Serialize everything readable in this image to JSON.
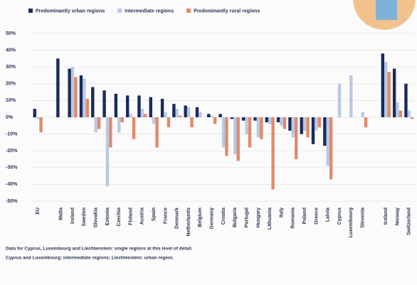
{
  "chart_data": {
    "type": "bar",
    "categories": [
      "EU",
      null,
      "Malta",
      "Ireland",
      "Sweden",
      "Slovakia",
      "Estonia",
      "Czechia",
      "Finland",
      "Austria",
      "Spain",
      "France",
      "Denmark",
      "Netherlands",
      "Belgium",
      "Germany",
      "Croatia",
      "Bulgaria",
      "Portugal",
      "Hungary",
      "Lithuania",
      "Italy",
      "Romania",
      "Poland",
      "Greece",
      "Latvia",
      "Cyprus",
      "Luxembourg",
      "Slovenia",
      null,
      "Iceland",
      "Norway",
      "Switzerland"
    ],
    "series": [
      {
        "name": "Predominantly urban regions",
        "color": "#1b2a5c",
        "values": [
          5,
          null,
          35,
          29,
          25,
          18,
          16,
          14,
          13,
          13,
          12,
          11,
          8,
          7,
          6,
          2,
          2,
          -1,
          -2,
          -2,
          -3,
          -3,
          -8,
          -10,
          -16,
          -17,
          null,
          null,
          null,
          null,
          38,
          29,
          20
        ]
      },
      {
        "name": "Intermediate regions",
        "color": "#b9c9e2",
        "values": [
          -1,
          null,
          null,
          30,
          23,
          -9,
          -41,
          -9,
          2,
          5,
          -4,
          3,
          5,
          6,
          3,
          1,
          -18,
          -22,
          -10,
          -12,
          -4,
          -5,
          -12,
          -8,
          -8,
          -29,
          20,
          25,
          3,
          null,
          33,
          9,
          4
        ]
      },
      {
        "name": "Predominantly rural regions",
        "color": "#e08a6c",
        "values": [
          -9,
          null,
          null,
          24,
          11,
          -7,
          -18,
          -3,
          -13,
          2,
          -18,
          -6,
          1,
          -6,
          0,
          -4,
          -23,
          -26,
          -18,
          -13,
          -43,
          -7,
          -25,
          -12,
          -6,
          -37,
          null,
          null,
          -6,
          null,
          27,
          4,
          -1
        ]
      }
    ],
    "ylim": [
      -50,
      50
    ],
    "yticks": [
      {
        "value": -50,
        "label": "-50%"
      },
      {
        "value": -40,
        "label": "-40%"
      },
      {
        "value": -30,
        "label": "-30%"
      },
      {
        "value": -20,
        "label": "-20%"
      },
      {
        "value": -10,
        "label": "-10%"
      },
      {
        "value": 0,
        "label": "0%"
      },
      {
        "value": 10,
        "label": "10%"
      },
      {
        "value": 20,
        "label": "20%"
      },
      {
        "value": 30,
        "label": "30%"
      },
      {
        "value": 40,
        "label": "40%"
      },
      {
        "value": 50,
        "label": "50%"
      }
    ],
    "grid": true,
    "notes": [
      "Data for Cyprus, Luxembourg and Liechtenstein: single regions at this level of detail.",
      "Cyprus and Luxembourg: intermediate regions; Liechtenstein: urban region."
    ]
  }
}
